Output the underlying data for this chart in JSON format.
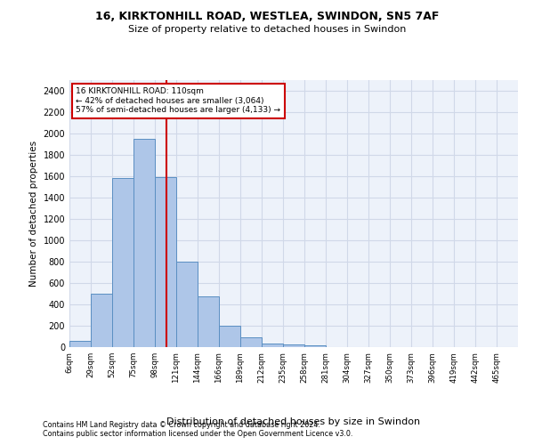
{
  "title_line1": "16, KIRKTONHILL ROAD, WESTLEA, SWINDON, SN5 7AF",
  "title_line2": "Size of property relative to detached houses in Swindon",
  "xlabel": "Distribution of detached houses by size in Swindon",
  "ylabel": "Number of detached properties",
  "footnote1": "Contains HM Land Registry data © Crown copyright and database right 2024.",
  "footnote2": "Contains public sector information licensed under the Open Government Licence v3.0.",
  "bin_labels": [
    "6sqm",
    "29sqm",
    "52sqm",
    "75sqm",
    "98sqm",
    "121sqm",
    "144sqm",
    "166sqm",
    "189sqm",
    "212sqm",
    "235sqm",
    "258sqm",
    "281sqm",
    "304sqm",
    "327sqm",
    "350sqm",
    "373sqm",
    "396sqm",
    "419sqm",
    "442sqm",
    "465sqm"
  ],
  "bar_heights": [
    60,
    500,
    1580,
    1950,
    1590,
    800,
    475,
    200,
    90,
    35,
    28,
    20,
    0,
    0,
    0,
    0,
    0,
    0,
    0,
    0
  ],
  "bar_color": "#aec6e8",
  "bar_edge_color": "#5a8fc2",
  "grid_color": "#d0d8e8",
  "bg_color": "#edf2fa",
  "vline_color": "#cc0000",
  "annotation_text": "16 KIRKTONHILL ROAD: 110sqm\n← 42% of detached houses are smaller (3,064)\n57% of semi-detached houses are larger (4,133) →",
  "annotation_box_color": "#ffffff",
  "annotation_box_edge": "#cc0000",
  "ylim": [
    0,
    2500
  ],
  "yticks": [
    0,
    200,
    400,
    600,
    800,
    1000,
    1200,
    1400,
    1600,
    1800,
    2000,
    2200,
    2400
  ]
}
